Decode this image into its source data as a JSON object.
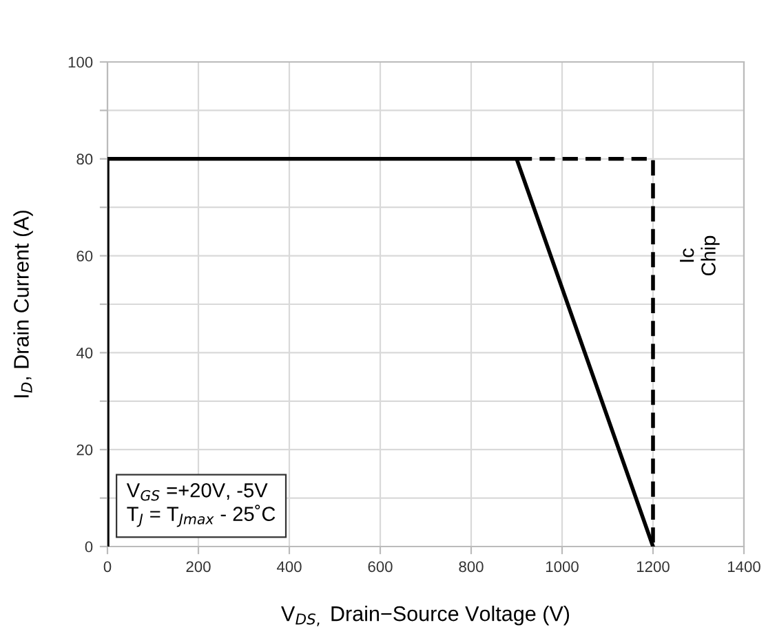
{
  "chart_data": {
    "type": "line",
    "xlabel": "V$_{DS,}$ Drain−Source Voltage (V)",
    "ylabel": "I$_{D}$, Drain Current (A)",
    "series": [
      {
        "x": [
          0,
          0,
          900,
          1200
        ],
        "values": [
          0,
          80,
          80,
          0
        ],
        "color": "#000000",
        "line_style": "solid"
      },
      {
        "x": [
          900,
          1200,
          1200
        ],
        "values": [
          80,
          80,
          0
        ],
        "color": "#000000",
        "line_style": "dashed"
      }
    ],
    "xlim": [
      0,
      1400
    ],
    "xticks": [
      0,
      200,
      400,
      600,
      800,
      1000,
      1200,
      1400
    ],
    "ylim": [
      0,
      100
    ],
    "yticks": [
      0,
      {
        "value": 10,
        "label": null
      },
      20,
      {
        "value": 30,
        "label": null
      },
      40,
      {
        "value": 50,
        "label": null
      },
      60,
      {
        "value": 70,
        "label": null
      },
      80,
      {
        "value": 90,
        "label": null
      },
      100
    ],
    "grid": true,
    "marker": "none",
    "annotations": [
      "V$_{GS}$ =+20V, -5V\nT$_{J}$ = T$_{Jmax}$ - 25˚C",
      "Ic\nChip"
    ]
  }
}
